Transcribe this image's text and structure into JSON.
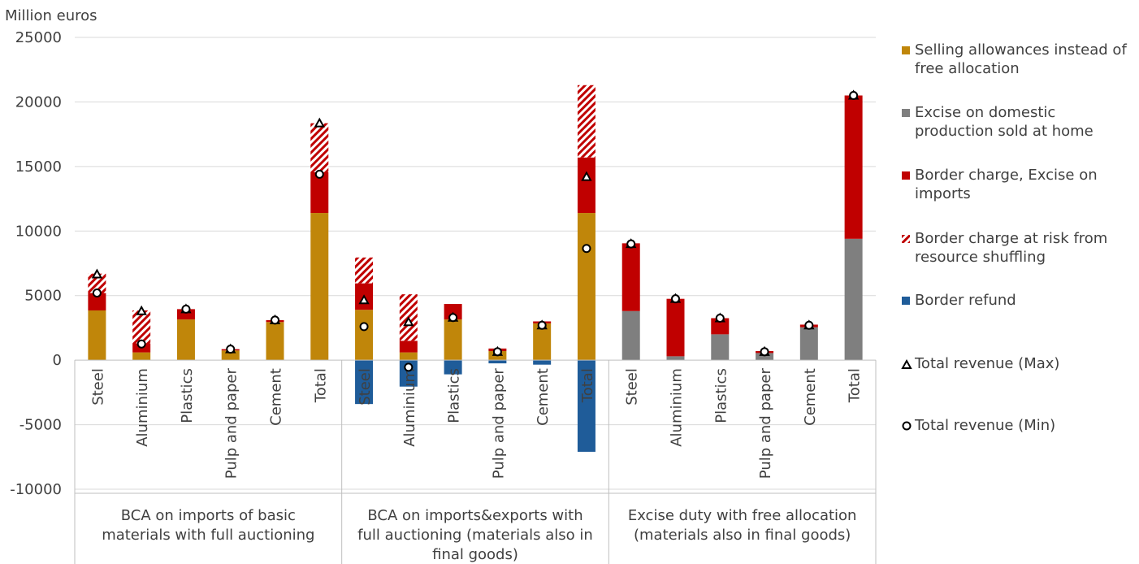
{
  "chart_data": {
    "type": "bar",
    "stacked": true,
    "yaxis_title": "Million euros",
    "ylim": [
      -10000,
      25000
    ],
    "yticks": [
      "25000",
      "20000",
      "15000",
      "10000",
      "5000",
      "0",
      "-5000",
      "-10000"
    ],
    "grid": true,
    "legend_position": "right",
    "groups": [
      {
        "label": "BCA on imports of basic materials with full auctioning",
        "label_lines": [
          "BCA on imports of basic",
          "materials with full auctioning"
        ]
      },
      {
        "label": "BCA on imports&exports with full auctioning (materials also in final goods)",
        "label_lines": [
          "BCA on imports&exports with",
          "full auctioning (materials also in",
          "final goods)"
        ]
      },
      {
        "label": "Excise duty with free allocation (materials also in final goods)",
        "label_lines": [
          "Excise duty with free allocation",
          "(materials also in final goods)"
        ]
      }
    ],
    "categories": [
      "Steel",
      "Aluminium",
      "Plastics",
      "Pulp and paper",
      "Cement",
      "Total",
      "Steel",
      "Aluminium",
      "Plastics",
      "Pulp and paper",
      "Cement",
      "Total",
      "Steel",
      "Aluminium",
      "Plastics",
      "Pulp and paper",
      "Cement",
      "Total"
    ],
    "series": [
      {
        "name": "Selling allowances instead of free allocation",
        "color": "#c0860a",
        "values": [
          3850,
          600,
          3150,
          750,
          2950,
          11400,
          3900,
          600,
          3150,
          700,
          2850,
          11400,
          0,
          0,
          0,
          0,
          0,
          0
        ]
      },
      {
        "name": "Excise on domestic production sold at home",
        "color": "#7f7f7f",
        "values": [
          0,
          0,
          0,
          0,
          0,
          0,
          0,
          0,
          0,
          0,
          0,
          0,
          3800,
          300,
          2000,
          550,
          2550,
          9400
        ]
      },
      {
        "name": "Border charge, Excise on imports",
        "color": "#c00000",
        "values": [
          1350,
          700,
          800,
          100,
          150,
          3150,
          2050,
          900,
          1200,
          200,
          150,
          4300,
          5250,
          4450,
          1250,
          150,
          200,
          11100
        ]
      },
      {
        "name": "Border charge at risk from resource shuffling",
        "color": "#c00000",
        "pattern": "hatch",
        "values": [
          1500,
          2550,
          0,
          0,
          0,
          3800,
          2000,
          3600,
          0,
          0,
          0,
          5600,
          0,
          0,
          0,
          0,
          0,
          0
        ]
      },
      {
        "name": "Border refund",
        "color": "#1f5c99",
        "values": [
          0,
          0,
          0,
          0,
          0,
          0,
          -3400,
          -2050,
          -1100,
          -250,
          -350,
          -7100,
          0,
          0,
          0,
          0,
          0,
          0
        ]
      }
    ],
    "markers": [
      {
        "name": "Total revenue (Max)",
        "symbol": "triangle",
        "values": [
          6650,
          3800,
          3950,
          850,
          3100,
          18350,
          4650,
          2950,
          3300,
          650,
          2700,
          14200,
          9000,
          4750,
          3250,
          650,
          2700,
          20500
        ]
      },
      {
        "name": "Total revenue (Min)",
        "symbol": "circle",
        "values": [
          5200,
          1250,
          3950,
          850,
          3100,
          14400,
          2600,
          -550,
          3300,
          650,
          2700,
          8650,
          9000,
          4750,
          3250,
          650,
          2700,
          20500
        ]
      }
    ]
  },
  "legend": {
    "selling": "Selling allowances instead of free allocation",
    "excise_domestic": "Excise on domestic production sold at home",
    "border_charge": "Border charge, Excise on imports",
    "border_risk": "Border charge at risk from resource shuffling",
    "border_refund": "Border refund",
    "total_max": "Total revenue (Max)",
    "total_min": "Total revenue (Min)"
  }
}
